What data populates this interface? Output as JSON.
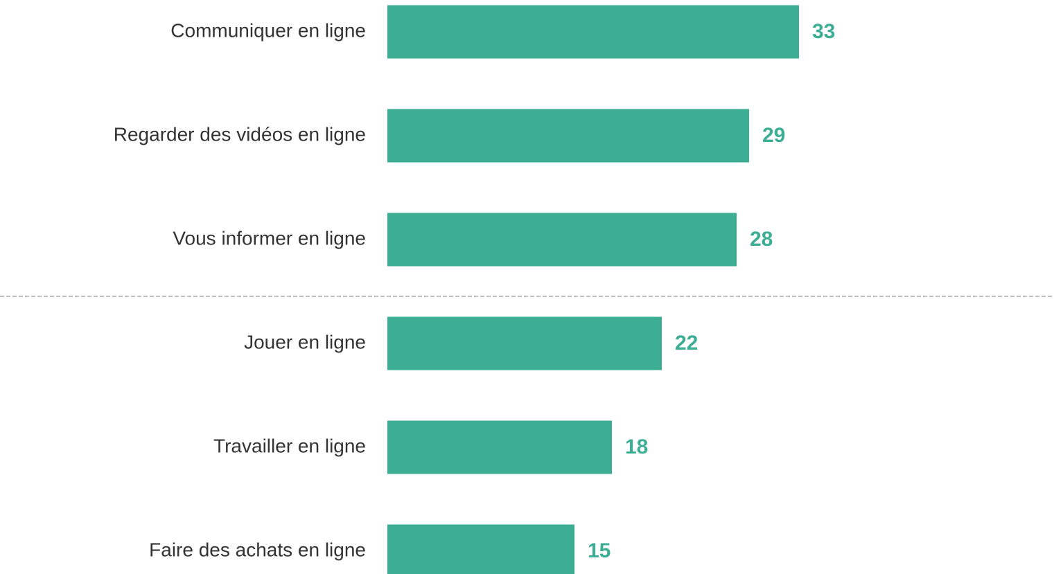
{
  "chart_data": {
    "type": "bar",
    "orientation": "horizontal",
    "categories": [
      "Communiquer en ligne",
      "Regarder des vidéos en ligne",
      "Vous informer en ligne",
      "Jouer en ligne",
      "Travailler en ligne",
      "Faire des achats en ligne"
    ],
    "values": [
      33,
      29,
      28,
      22,
      18,
      15
    ],
    "color": "#3dae94"
  }
}
